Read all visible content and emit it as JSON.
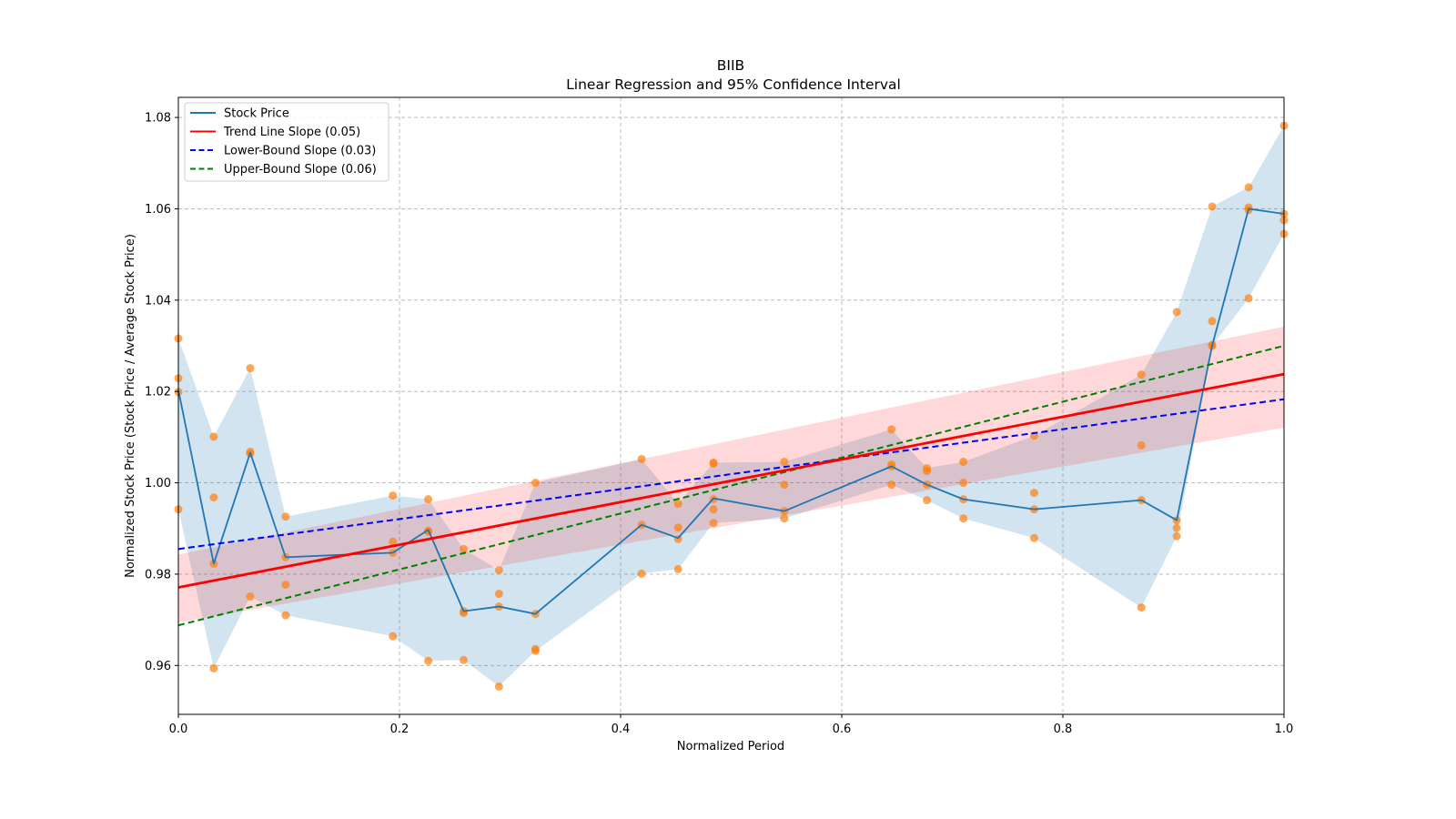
{
  "chart_data": {
    "type": "line",
    "title": "BIIB",
    "subtitle": "Linear Regression and 95% Confidence Interval",
    "xlabel": "Normalized Period",
    "ylabel": "Normalized Stock Price (Stock Price / Average Stock Price)",
    "xlim": [
      0.0,
      1.0
    ],
    "ylim": [
      0.9493,
      1.0844
    ],
    "xticks": [
      0.0,
      0.2,
      0.4,
      0.6,
      0.8,
      1.0
    ],
    "xtick_labels": [
      "0.0",
      "0.2",
      "0.4",
      "0.6",
      "0.8",
      "1.0"
    ],
    "yticks": [
      0.96,
      0.98,
      1.0,
      1.02,
      1.04,
      1.06,
      1.08
    ],
    "ytick_labels": [
      "0.96",
      "0.98",
      "1.00",
      "1.02",
      "1.04",
      "1.06",
      "1.08"
    ],
    "grid": true,
    "legend_position": "top-left",
    "legend": [
      {
        "label": "Stock Price",
        "color": "#1f77b4",
        "style": "solid"
      },
      {
        "label": "Trend Line Slope (0.05)",
        "color": "#ff0000",
        "style": "solid"
      },
      {
        "label": "Lower-Bound Slope (0.03)",
        "color": "#0000ff",
        "style": "dashed"
      },
      {
        "label": "Upper-Bound Slope (0.06)",
        "color": "#008000",
        "style": "dashed"
      }
    ],
    "colors": {
      "stock_line": "#1f77b4",
      "scatter": "#ff7f0e",
      "envelope_fill": "#1f77b4",
      "trend": "#ff0000",
      "trend_ci_fill": "#ff0000",
      "lower_bound": "#0000ff",
      "upper_bound": "#008000"
    },
    "stock_price": {
      "x": [
        0.0,
        0.032,
        0.065,
        0.097,
        0.194,
        0.226,
        0.258,
        0.29,
        0.323,
        0.419,
        0.452,
        0.484,
        0.548,
        0.645,
        0.677,
        0.71,
        0.774,
        0.871,
        0.903,
        0.935,
        0.968,
        1.0
      ],
      "y": [
        1.0203,
        0.9823,
        1.0066,
        0.9837,
        0.9847,
        0.9897,
        0.9719,
        0.9729,
        0.9713,
        0.9908,
        0.9879,
        0.9966,
        0.9938,
        1.0036,
        0.9996,
        0.9964,
        0.9942,
        0.9962,
        0.9918,
        1.03,
        1.06,
        1.0589
      ]
    },
    "scatter_points": [
      {
        "x": 0.0,
        "y": [
          1.0316,
          1.0229,
          1.0199,
          0.9942
        ]
      },
      {
        "x": 0.032,
        "y": [
          1.0101,
          0.9968,
          0.9823,
          0.9594
        ]
      },
      {
        "x": 0.065,
        "y": [
          1.0251,
          1.0068,
          1.0064,
          0.9751
        ]
      },
      {
        "x": 0.097,
        "y": [
          0.9926,
          0.9837,
          0.9777,
          0.971
        ]
      },
      {
        "x": 0.194,
        "y": [
          0.9972,
          0.9871,
          0.9847,
          0.9664
        ]
      },
      {
        "x": 0.226,
        "y": [
          0.9964,
          0.9895,
          0.9893,
          0.961
        ]
      },
      {
        "x": 0.258,
        "y": [
          0.9855,
          0.9719,
          0.9715,
          0.9612
        ]
      },
      {
        "x": 0.29,
        "y": [
          0.9809,
          0.9757,
          0.9729,
          0.9554
        ]
      },
      {
        "x": 0.323,
        "y": [
          1.0,
          0.9713,
          0.9636,
          0.9632
        ]
      },
      {
        "x": 0.419,
        "y": [
          1.0052,
          0.9908,
          0.9801
        ]
      },
      {
        "x": 0.452,
        "y": [
          0.9954,
          0.9902,
          0.9877,
          0.9811
        ]
      },
      {
        "x": 0.484,
        "y": [
          1.0044,
          1.0042,
          0.9964,
          0.9942,
          0.9912
        ]
      },
      {
        "x": 0.548,
        "y": [
          1.0046,
          0.9996,
          0.9938,
          0.9922
        ]
      },
      {
        "x": 0.645,
        "y": [
          1.0117,
          1.004,
          1.0036,
          0.9996
        ]
      },
      {
        "x": 0.677,
        "y": [
          1.0032,
          1.0026,
          0.9996,
          0.9962
        ]
      },
      {
        "x": 0.71,
        "y": [
          1.0046,
          1.0,
          0.9964,
          0.9922
        ]
      },
      {
        "x": 0.774,
        "y": [
          1.0103,
          0.9978,
          0.9942,
          0.9879
        ]
      },
      {
        "x": 0.871,
        "y": [
          1.0237,
          1.0082,
          0.9962,
          0.9727
        ]
      },
      {
        "x": 0.903,
        "y": [
          1.0374,
          0.9918,
          0.9901,
          0.9883
        ]
      },
      {
        "x": 0.935,
        "y": [
          1.0605,
          1.0354,
          1.0302,
          1.03
        ]
      },
      {
        "x": 0.968,
        "y": [
          1.0647,
          1.0603,
          1.0597,
          1.0404
        ]
      },
      {
        "x": 1.0,
        "y": [
          1.0782,
          1.0589,
          1.0575,
          1.0545
        ]
      }
    ],
    "trend_line": {
      "x": [
        0.0,
        1.0
      ],
      "y": [
        0.9771,
        1.0238
      ],
      "slope": 0.05
    },
    "trend_ci_band": {
      "x": [
        0.0,
        1.0
      ],
      "upper": [
        0.9843,
        1.0342
      ],
      "lower": [
        0.9694,
        1.0121
      ]
    },
    "lower_bound_line": {
      "x": [
        0.0,
        1.0
      ],
      "y": [
        0.9855,
        1.0183
      ],
      "slope": 0.03
    },
    "upper_bound_line": {
      "x": [
        0.0,
        1.0
      ],
      "y": [
        0.9688,
        1.03
      ],
      "slope": 0.06
    }
  }
}
